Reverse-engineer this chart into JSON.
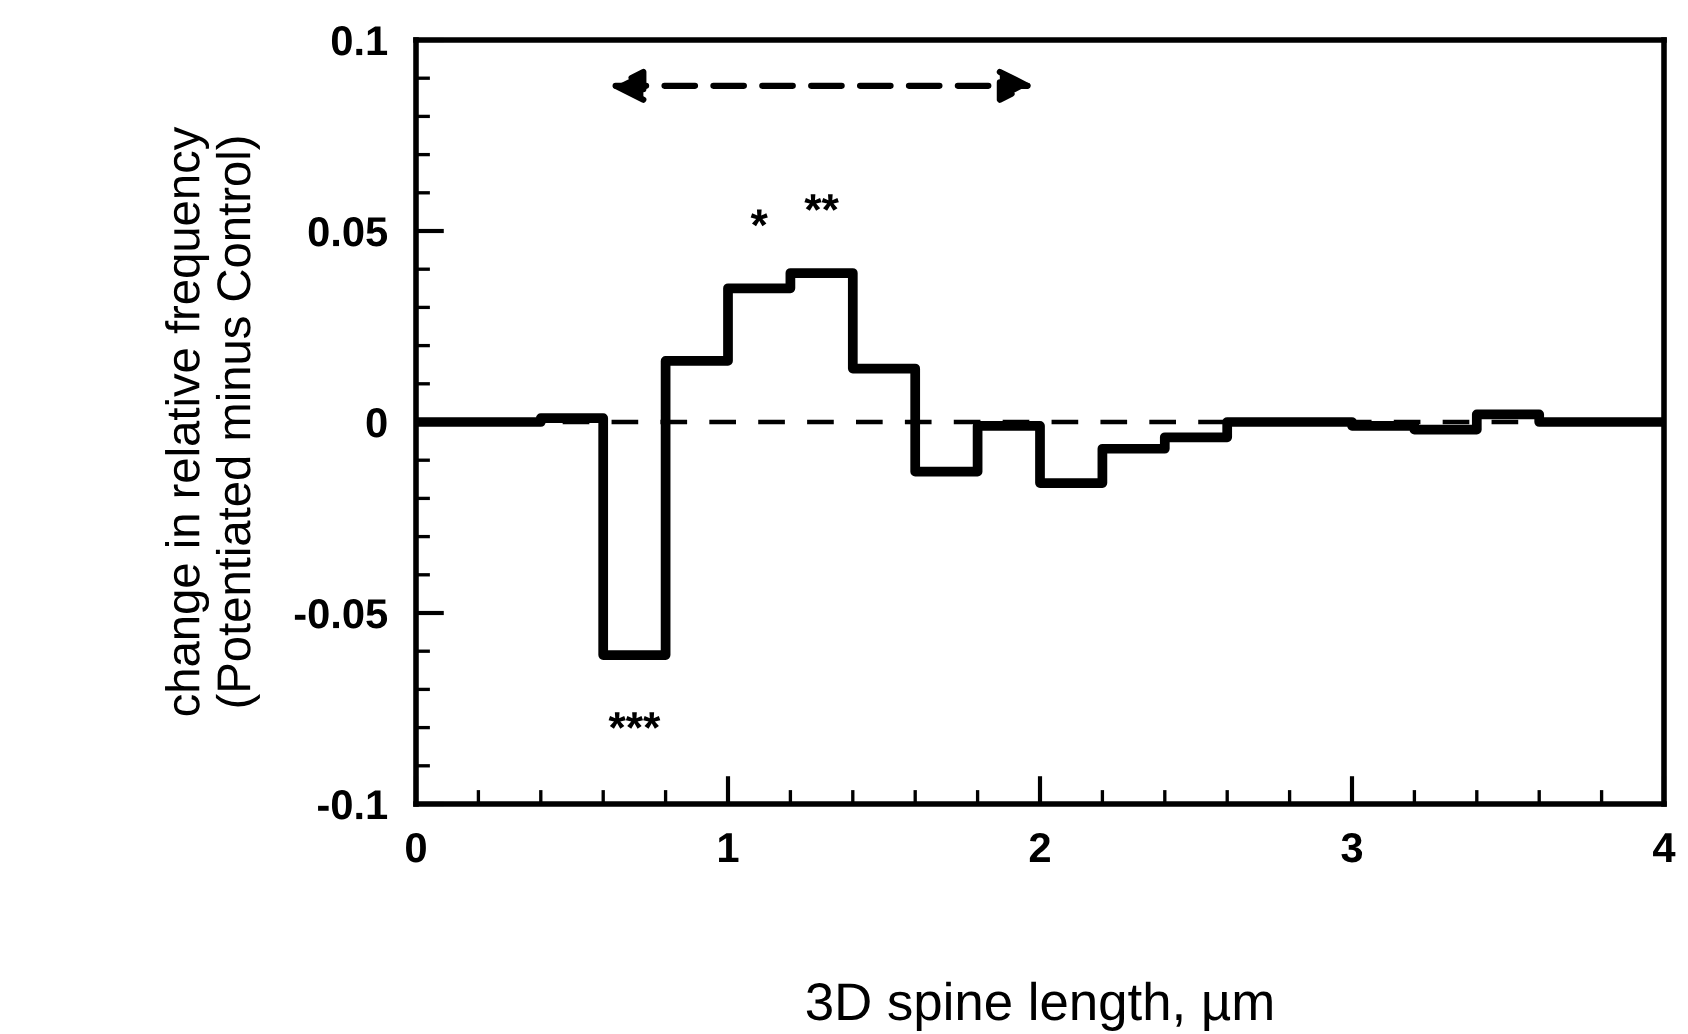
{
  "chart_data": {
    "type": "histogram",
    "xlabel": "3D spine length, µm",
    "ylabel": "change in relative frequency\n(Potentiated minus Control)",
    "bins": [
      0,
      0.2,
      0.4,
      0.6,
      0.8,
      1.0,
      1.2,
      1.4,
      1.6,
      1.8,
      2.0,
      2.2,
      2.4,
      2.6,
      2.8,
      3.0,
      3.2,
      3.4,
      3.6,
      3.8,
      4.0
    ],
    "values": [
      0,
      0,
      0.001,
      -0.061,
      0.016,
      0.035,
      0.039,
      0.014,
      -0.013,
      -0.001,
      -0.016,
      -0.007,
      -0.004,
      0,
      0,
      -0.001,
      -0.002,
      0.002,
      0,
      0
    ],
    "color": "#000000",
    "xlim": [
      0,
      4
    ],
    "xticks": [
      0,
      1,
      2,
      3,
      4
    ],
    "ylim": [
      -0.1,
      0.1
    ],
    "yticks": [
      -0.1,
      -0.05,
      0,
      0.05,
      0.1
    ],
    "ref_lines": [
      {
        "axis": "y",
        "value": 0,
        "line_style": "dashed",
        "color": "#000000"
      }
    ],
    "annotations": [
      {
        "text": "*",
        "x": 1.1,
        "y": 0.035
      },
      {
        "text": "**",
        "x": 1.3,
        "y": 0.039
      },
      {
        "text": "***",
        "x": 0.7,
        "y": -0.061
      }
    ],
    "grid": false,
    "legend": false
  }
}
